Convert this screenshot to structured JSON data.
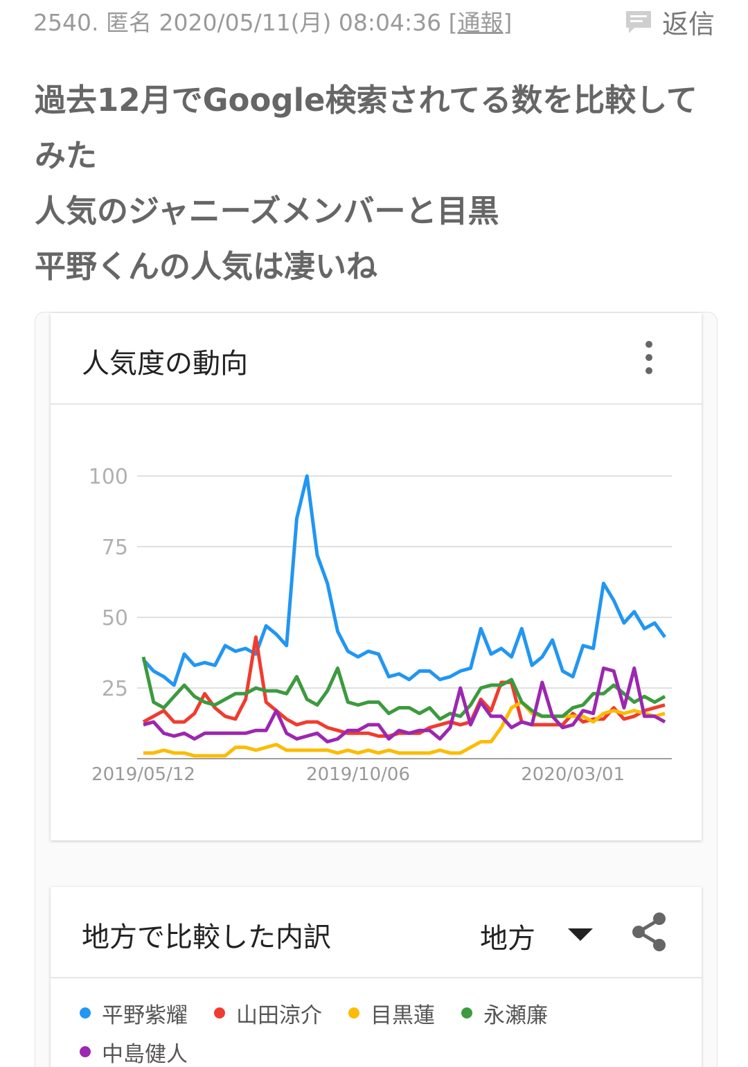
{
  "post": {
    "number": "2540.",
    "name": "匿名",
    "date": "2020/05/11(月) 08:04:36",
    "report": "[通報]",
    "reply": "返信",
    "body": [
      "過去12月でGoogle検索されてる数を比較してみた",
      "人気のジャニーズメンバーと目黒",
      "平野くんの人気は凄いね"
    ]
  },
  "chart_data": {
    "type": "line",
    "title": "人気度の動向",
    "categories": [
      "2019/05/12",
      null,
      null,
      null,
      null,
      null,
      null,
      null,
      null,
      null,
      null,
      null,
      null,
      null,
      null,
      null,
      null,
      null,
      null,
      null,
      null,
      "2019/10/06",
      null,
      null,
      null,
      null,
      null,
      null,
      null,
      null,
      null,
      null,
      null,
      null,
      null,
      null,
      null,
      null,
      null,
      null,
      null,
      null,
      "2020/03/01",
      null,
      null,
      null,
      null,
      null,
      null,
      null,
      null,
      null
    ],
    "series": [
      {
        "name": "平野紫耀",
        "color": "#2196f3",
        "values": [
          35,
          31,
          29,
          26,
          37,
          33,
          34,
          33,
          40,
          38,
          39,
          37,
          47,
          44,
          40,
          85,
          100,
          72,
          62,
          45,
          38,
          36,
          38,
          37,
          29,
          30,
          28,
          31,
          31,
          28,
          29,
          31,
          32,
          46,
          37,
          39,
          36,
          46,
          33,
          36,
          42,
          31,
          29,
          40,
          39,
          62,
          56,
          48,
          52,
          46,
          48,
          43
        ]
      },
      {
        "name": "山田涼介",
        "color": "#f03c2e",
        "values": [
          13,
          15,
          17,
          13,
          13,
          16,
          23,
          18,
          15,
          14,
          21,
          43,
          20,
          17,
          14,
          12,
          13,
          13,
          11,
          10,
          9,
          9,
          9,
          8,
          8,
          9,
          9,
          9,
          11,
          12,
          13,
          12,
          13,
          21,
          17,
          27,
          27,
          13,
          12,
          12,
          12,
          12,
          16,
          13,
          14,
          14,
          18,
          14,
          15,
          17,
          18,
          19
        ]
      },
      {
        "name": "目黒蓮",
        "color": "#fbbc04",
        "values": [
          2,
          2,
          3,
          2,
          2,
          1,
          1,
          1,
          1,
          4,
          4,
          3,
          4,
          5,
          3,
          3,
          3,
          3,
          3,
          2,
          3,
          2,
          3,
          2,
          3,
          2,
          2,
          2,
          2,
          3,
          2,
          2,
          4,
          6,
          6,
          11,
          18,
          20,
          16,
          15,
          15,
          15,
          15,
          15,
          13,
          16,
          17,
          16,
          17,
          16,
          15,
          16
        ]
      },
      {
        "name": "永瀬廉",
        "color": "#3c9a3f",
        "values": [
          36,
          20,
          18,
          22,
          26,
          22,
          20,
          19,
          21,
          23,
          23,
          25,
          24,
          24,
          23,
          29,
          21,
          19,
          24,
          32,
          20,
          19,
          20,
          20,
          16,
          18,
          18,
          16,
          18,
          14,
          16,
          15,
          19,
          25,
          26,
          26,
          28,
          20,
          17,
          15,
          15,
          15,
          18,
          19,
          23,
          23,
          26,
          23,
          20,
          22,
          20,
          22
        ]
      },
      {
        "name": "中島健人",
        "color": "#9c27b0",
        "values": [
          12,
          13,
          9,
          8,
          9,
          7,
          9,
          9,
          9,
          9,
          9,
          10,
          10,
          17,
          9,
          7,
          8,
          9,
          6,
          7,
          10,
          10,
          12,
          12,
          7,
          10,
          9,
          10,
          10,
          7,
          11,
          25,
          12,
          20,
          15,
          15,
          11,
          13,
          12,
          27,
          15,
          11,
          12,
          17,
          16,
          32,
          31,
          18,
          32,
          15,
          15,
          13
        ]
      }
    ],
    "ylim": [
      0,
      100
    ],
    "yticks": [
      25,
      50,
      75,
      100
    ],
    "grid": true
  },
  "breakdown": {
    "title": "地方で比較した内訳",
    "dropdown": "地方"
  }
}
